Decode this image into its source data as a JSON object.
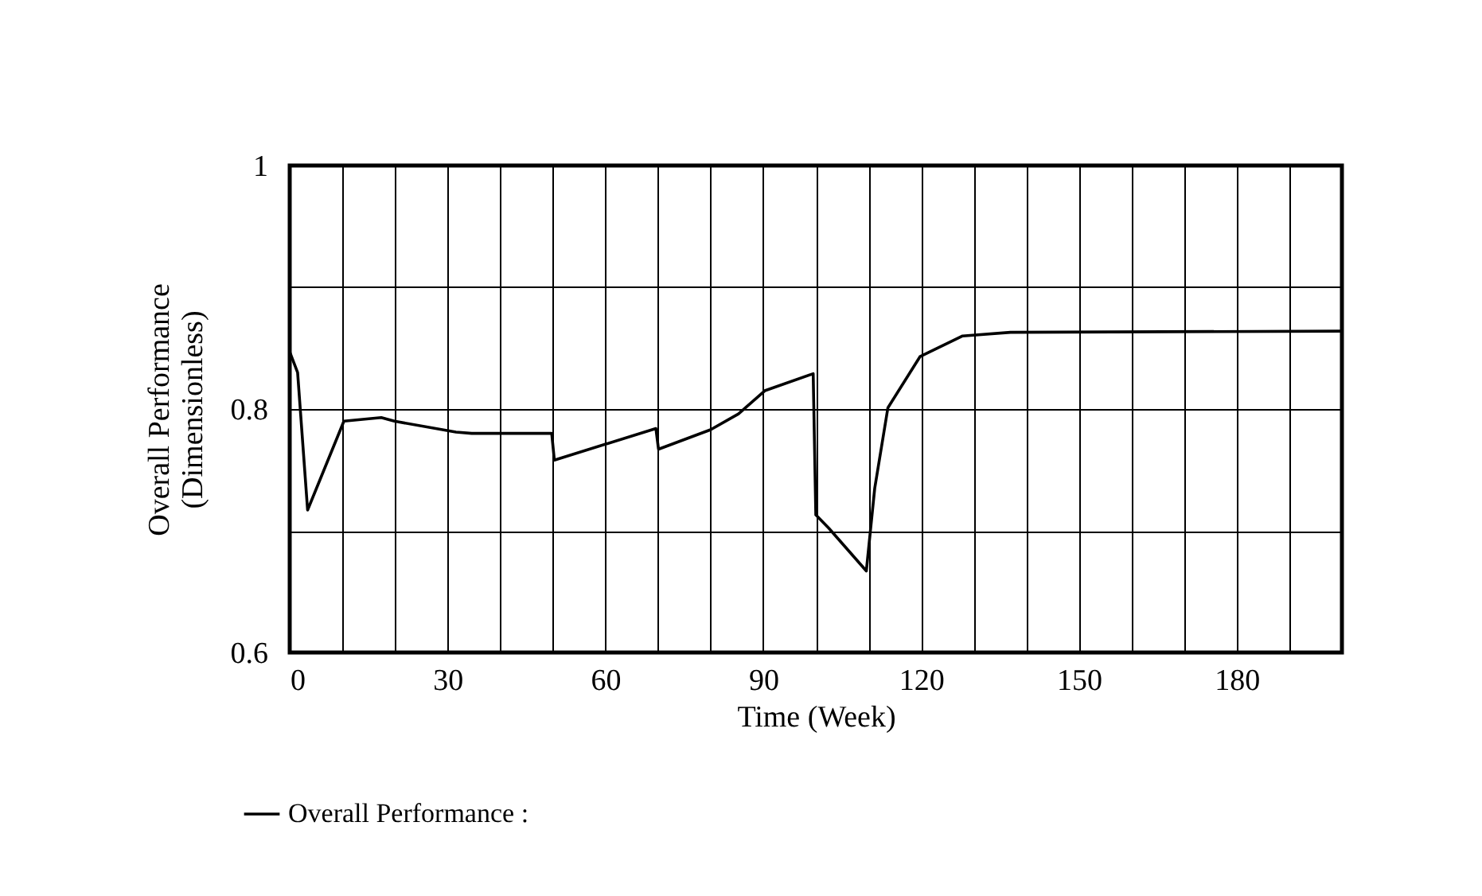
{
  "chart_data": {
    "type": "line",
    "xlabel": "Time (Week)",
    "ylabel": "Overall Performance\n(Dimensionless)",
    "xlim": [
      0,
      200
    ],
    "ylim": [
      0.6,
      1
    ],
    "xticks": [
      0,
      {
        "value": 10,
        "label": null
      },
      {
        "value": 20,
        "label": null
      },
      30,
      {
        "value": 40,
        "label": null
      },
      {
        "value": 50,
        "label": null
      },
      60,
      {
        "value": 70,
        "label": null
      },
      {
        "value": 80,
        "label": null
      },
      90,
      {
        "value": 100,
        "label": null
      },
      {
        "value": 110,
        "label": null
      },
      120,
      {
        "value": 130,
        "label": null
      },
      {
        "value": 140,
        "label": null
      },
      150,
      {
        "value": 160,
        "label": null
      },
      {
        "value": 170,
        "label": null
      },
      180,
      {
        "value": 190,
        "label": null
      },
      {
        "value": 200,
        "label": null
      }
    ],
    "yticks": [
      0.6,
      {
        "value": 0.7,
        "label": null
      },
      0.8,
      {
        "value": 0.9,
        "label": null
      },
      1
    ],
    "grid": true,
    "legend": "bottom left",
    "series": [
      {
        "name": "Overall Performance :",
        "color": "#000000",
        "x": [
          0,
          1.5,
          3.4,
          10.3,
          17.4,
          19.9,
          31.6,
          34.6,
          49.8,
          50.3,
          69.6,
          70.1,
          80,
          85.3,
          90.3,
          99.5,
          100,
          102.5,
          109.6,
          111.2,
          113.7,
          119.8,
          127.9,
          137,
          200
        ],
        "values": [
          0.847,
          0.83,
          0.717,
          0.79,
          0.793,
          0.79,
          0.781,
          0.78,
          0.78,
          0.758,
          0.784,
          0.767,
          0.783,
          0.796,
          0.815,
          0.829,
          0.713,
          0.702,
          0.667,
          0.735,
          0.801,
          0.843,
          0.86,
          0.863,
          0.864
        ]
      }
    ]
  }
}
